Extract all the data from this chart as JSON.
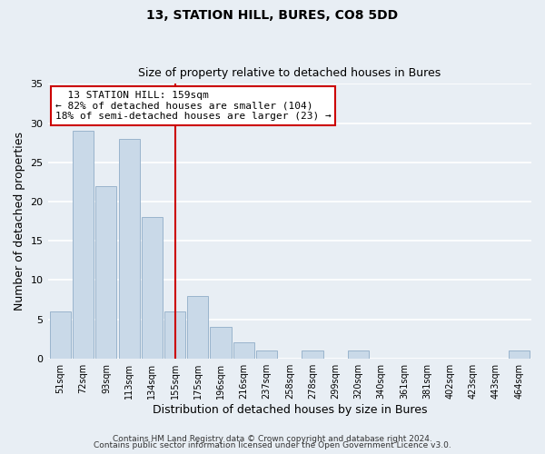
{
  "title": "13, STATION HILL, BURES, CO8 5DD",
  "subtitle": "Size of property relative to detached houses in Bures",
  "xlabel": "Distribution of detached houses by size in Bures",
  "ylabel": "Number of detached properties",
  "bar_labels": [
    "51sqm",
    "72sqm",
    "93sqm",
    "113sqm",
    "134sqm",
    "155sqm",
    "175sqm",
    "196sqm",
    "216sqm",
    "237sqm",
    "258sqm",
    "278sqm",
    "299sqm",
    "320sqm",
    "340sqm",
    "361sqm",
    "381sqm",
    "402sqm",
    "423sqm",
    "443sqm",
    "464sqm"
  ],
  "bar_values": [
    6,
    29,
    22,
    28,
    18,
    6,
    8,
    4,
    2,
    1,
    0,
    1,
    0,
    1,
    0,
    0,
    0,
    0,
    0,
    0,
    1
  ],
  "bar_color": "#c9d9e8",
  "bar_edge_color": "#9ab4cc",
  "vline_x": 5,
  "vline_color": "#cc0000",
  "annotation_title": "13 STATION HILL: 159sqm",
  "annotation_line1": "← 82% of detached houses are smaller (104)",
  "annotation_line2": "18% of semi-detached houses are larger (23) →",
  "annotation_box_facecolor": "#ffffff",
  "annotation_box_edgecolor": "#cc0000",
  "ylim": [
    0,
    35
  ],
  "yticks": [
    0,
    5,
    10,
    15,
    20,
    25,
    30,
    35
  ],
  "footer1": "Contains HM Land Registry data © Crown copyright and database right 2024.",
  "footer2": "Contains public sector information licensed under the Open Government Licence v3.0.",
  "fig_facecolor": "#e8eef4",
  "plot_facecolor": "#e8eef4",
  "grid_color": "#ffffff",
  "title_fontsize": 10,
  "subtitle_fontsize": 9
}
